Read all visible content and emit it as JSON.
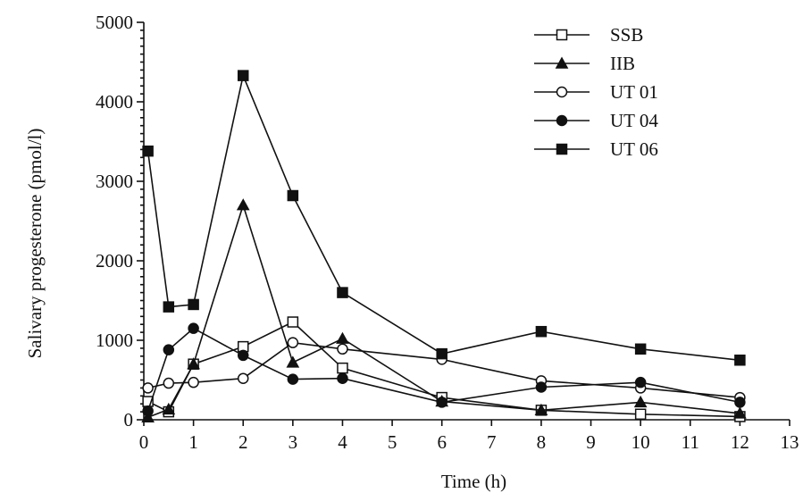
{
  "chart_data": {
    "type": "line",
    "title": "",
    "xlabel": "Time (h)",
    "ylabel": "Salivary progesterone (pmol/l)",
    "xlim": [
      0,
      13
    ],
    "ylim": [
      0,
      5000
    ],
    "xticks": [
      0,
      1,
      2,
      3,
      4,
      5,
      6,
      7,
      8,
      9,
      10,
      11,
      12,
      13
    ],
    "yticks": [
      0,
      1000,
      2000,
      3000,
      4000,
      5000
    ],
    "grid": false,
    "legend_position": "top-right",
    "series": [
      {
        "name": "SSB",
        "marker": "open-square",
        "x": [
          0.083,
          0.5,
          1,
          2,
          3,
          4,
          6,
          8,
          10,
          12
        ],
        "y": [
          230,
          100,
          700,
          920,
          1230,
          650,
          280,
          120,
          70,
          40
        ]
      },
      {
        "name": "IIB",
        "marker": "filled-triangle",
        "x": [
          0.083,
          0.5,
          1,
          2,
          3,
          4,
          6,
          8,
          10,
          12
        ],
        "y": [
          30,
          130,
          700,
          2700,
          720,
          1020,
          230,
          120,
          220,
          80
        ]
      },
      {
        "name": "UT 01",
        "marker": "open-circle",
        "x": [
          0.083,
          0.5,
          1,
          2,
          3,
          4,
          6,
          8,
          10,
          12
        ],
        "y": [
          400,
          460,
          470,
          520,
          970,
          890,
          760,
          490,
          400,
          280
        ]
      },
      {
        "name": "UT 04",
        "marker": "filled-circle",
        "x": [
          0.083,
          0.5,
          1,
          2,
          3,
          4,
          6,
          8,
          10,
          12
        ],
        "y": [
          110,
          880,
          1150,
          810,
          510,
          520,
          220,
          410,
          470,
          220
        ]
      },
      {
        "name": "UT 06",
        "marker": "filled-square",
        "x": [
          0.083,
          0.5,
          1,
          2,
          3,
          4,
          6,
          8,
          10,
          12
        ],
        "y": [
          3380,
          1420,
          1450,
          4330,
          2820,
          1600,
          830,
          1110,
          890,
          750
        ]
      }
    ]
  }
}
